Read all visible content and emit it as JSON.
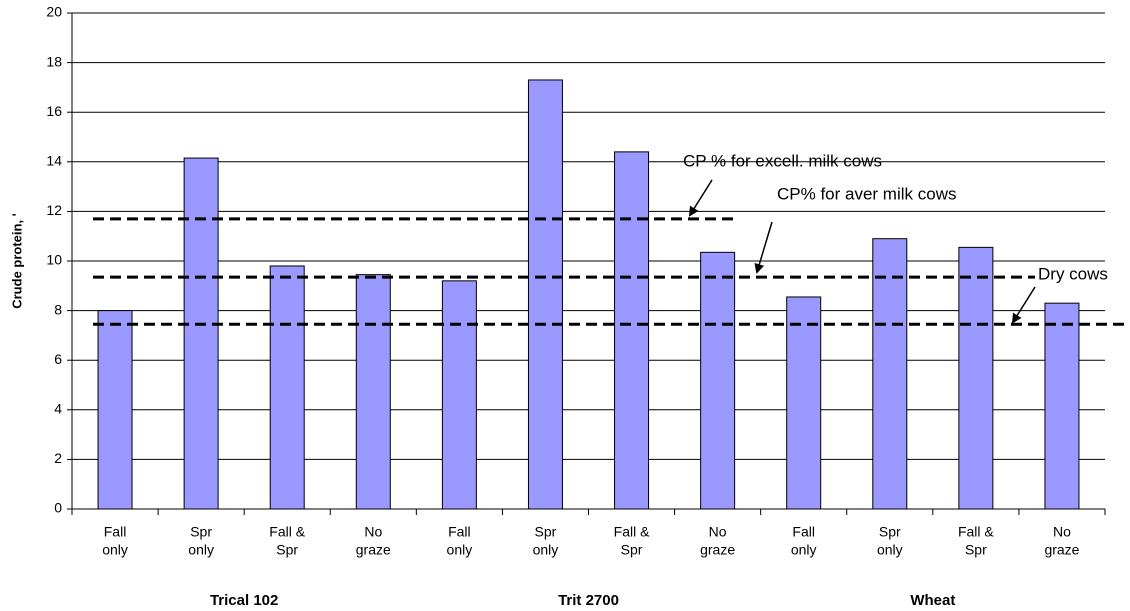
{
  "chart_data": {
    "type": "bar",
    "y_axis_label": "Crude protein, '",
    "categories": [
      [
        "Fall",
        "only"
      ],
      [
        "Spr",
        "only"
      ],
      [
        "Fall &",
        "Spr"
      ],
      [
        "No",
        "graze"
      ],
      [
        "Fall",
        "only"
      ],
      [
        "Spr",
        "only"
      ],
      [
        "Fall &",
        "Spr"
      ],
      [
        "No",
        "graze"
      ],
      [
        "Fall",
        "only"
      ],
      [
        "Spr",
        "only"
      ],
      [
        "Fall &",
        "Spr"
      ],
      [
        "No",
        "graze"
      ]
    ],
    "groups": [
      "Trical 102",
      "Trit 2700",
      "Wheat"
    ],
    "values": [
      8.0,
      14.15,
      9.8,
      9.45,
      9.2,
      17.3,
      14.4,
      10.35,
      8.55,
      10.9,
      10.55,
      8.3
    ],
    "color": "#9999ff",
    "ylim": [
      0,
      20
    ],
    "yticks": [
      0,
      2,
      4,
      6,
      8,
      10,
      12,
      14,
      16,
      18,
      20
    ],
    "grid": true,
    "reference_lines": [
      {
        "value": 11.7,
        "label": "CP % for excell. milk cows"
      },
      {
        "value": 9.35,
        "label": "CP% for aver milk cows"
      },
      {
        "value": 7.45,
        "label": "Dry cows"
      }
    ]
  }
}
